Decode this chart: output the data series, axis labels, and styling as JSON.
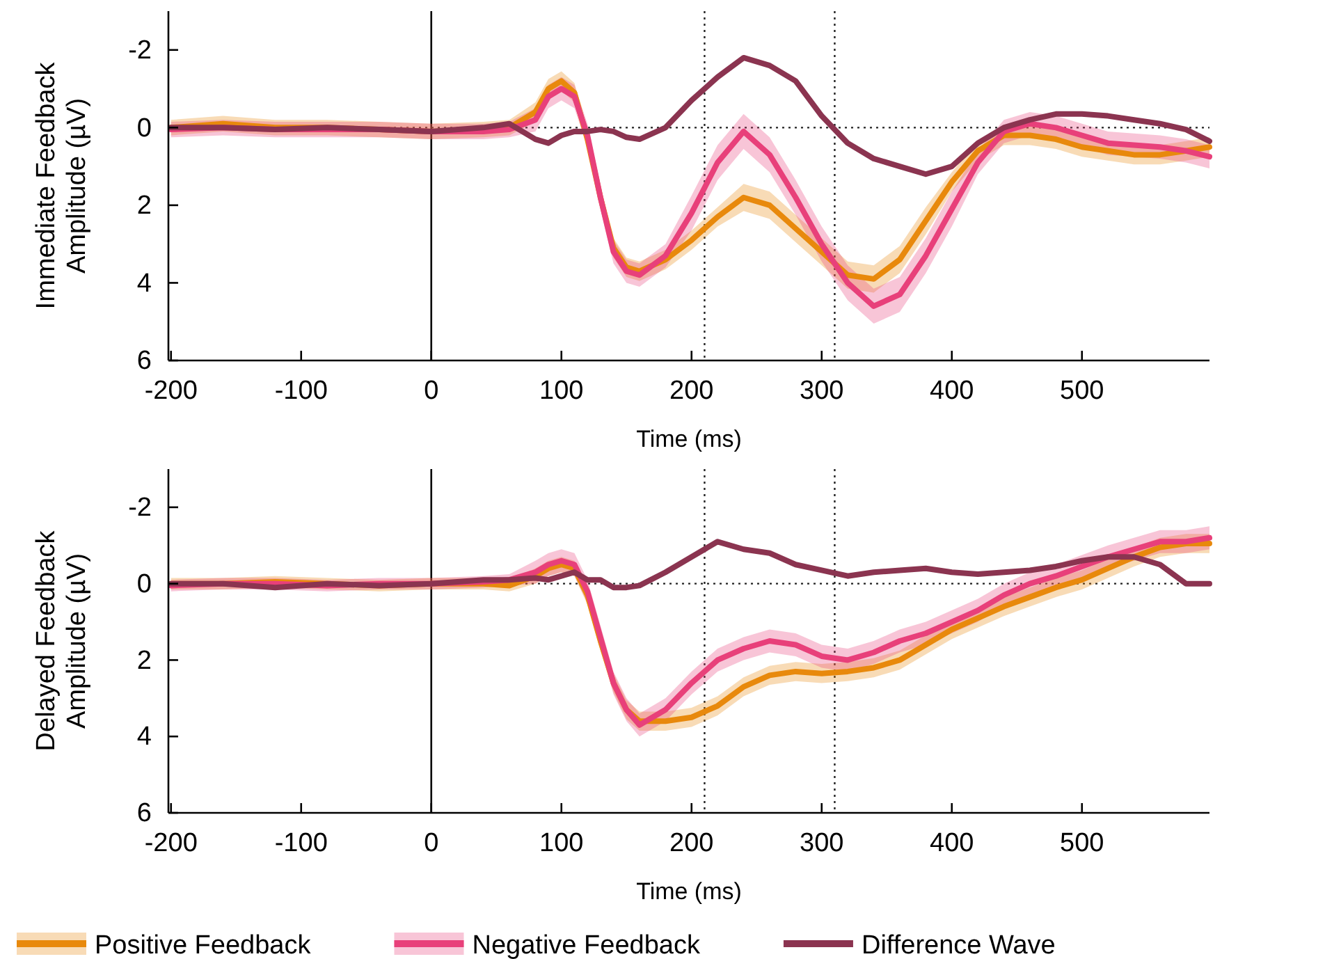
{
  "chart_data": [
    {
      "type": "line",
      "xlabel": "Time (ms)",
      "ylabel": "Immediate Feedback Amplitude (µV)",
      "x": [
        -200,
        -160,
        -120,
        -80,
        -40,
        0,
        40,
        60,
        80,
        90,
        100,
        110,
        120,
        130,
        140,
        150,
        160,
        180,
        200,
        220,
        240,
        260,
        280,
        300,
        320,
        340,
        360,
        380,
        400,
        420,
        440,
        460,
        480,
        500,
        520,
        540,
        560,
        580,
        598
      ],
      "xlim": [
        -202,
        598
      ],
      "xticks": [
        -200,
        -100,
        0,
        100,
        200,
        300,
        400,
        500
      ],
      "ylim": [
        6,
        -3
      ],
      "yticks": [
        -2,
        0,
        2,
        4,
        6
      ],
      "ref_lines": [
        {
          "axis": "x",
          "value": 0,
          "line_style": "solid"
        },
        {
          "axis": "x",
          "value": 210,
          "line_style": "dotted"
        },
        {
          "axis": "x",
          "value": 310,
          "line_style": "dotted"
        },
        {
          "axis": "y",
          "value": 0,
          "line_style": "dotted"
        }
      ],
      "legend": false,
      "line_style": "solid",
      "marker": "none",
      "series": [
        {
          "color": "#e8890c",
          "values": [
            0,
            -0.1,
            0,
            0,
            0.05,
            0.1,
            0.05,
            0,
            -0.4,
            -1.0,
            -1.2,
            -0.9,
            0.3,
            1.8,
            3.1,
            3.6,
            3.7,
            3.4,
            2.9,
            2.3,
            1.8,
            2.0,
            2.6,
            3.2,
            3.8,
            3.9,
            3.4,
            2.4,
            1.4,
            0.6,
            0.2,
            0.2,
            0.3,
            0.5,
            0.6,
            0.7,
            0.7,
            0.6,
            0.5
          ],
          "lower": [
            -0.2,
            -0.3,
            -0.2,
            -0.2,
            -0.15,
            -0.1,
            -0.15,
            -0.2,
            -0.65,
            -1.25,
            -1.45,
            -1.15,
            0.05,
            1.55,
            2.85,
            3.35,
            3.45,
            3.15,
            2.65,
            2.05,
            1.45,
            1.65,
            2.25,
            2.85,
            3.45,
            3.55,
            3.05,
            2.05,
            1.15,
            0.35,
            -0.05,
            -0.05,
            0.05,
            0.25,
            0.35,
            0.45,
            0.45,
            0.35,
            0.25
          ],
          "upper": [
            0.2,
            0.1,
            0.2,
            0.2,
            0.25,
            0.3,
            0.25,
            0.2,
            -0.15,
            -0.75,
            -0.95,
            -0.65,
            0.55,
            2.05,
            3.35,
            3.85,
            3.95,
            3.65,
            3.15,
            2.55,
            2.15,
            2.35,
            2.95,
            3.55,
            4.15,
            4.25,
            3.75,
            2.75,
            1.65,
            0.85,
            0.45,
            0.45,
            0.55,
            0.75,
            0.85,
            0.95,
            0.95,
            0.85,
            0.75
          ]
        },
        {
          "color": "#e8407a",
          "values": [
            0.05,
            0,
            0.05,
            0.05,
            0.05,
            0.1,
            0.1,
            0.05,
            -0.2,
            -0.8,
            -1.0,
            -0.8,
            0.2,
            1.8,
            3.2,
            3.7,
            3.8,
            3.3,
            2.2,
            0.9,
            0.1,
            0.7,
            1.8,
            3.0,
            4.0,
            4.6,
            4.3,
            3.3,
            2.1,
            0.9,
            0.1,
            -0.1,
            0,
            0.2,
            0.4,
            0.45,
            0.5,
            0.6,
            0.75
          ],
          "lower": [
            -0.15,
            -0.2,
            -0.15,
            -0.15,
            -0.15,
            -0.1,
            -0.1,
            -0.15,
            -0.5,
            -1.1,
            -1.3,
            -1.1,
            -0.1,
            1.5,
            2.9,
            3.4,
            3.5,
            3.0,
            1.75,
            0.45,
            -0.35,
            0.25,
            1.35,
            2.55,
            3.55,
            4.15,
            3.85,
            2.85,
            1.65,
            0.6,
            -0.2,
            -0.4,
            -0.3,
            -0.1,
            0.1,
            0.15,
            0.2,
            0.3,
            0.45
          ],
          "upper": [
            0.25,
            0.2,
            0.25,
            0.25,
            0.25,
            0.3,
            0.3,
            0.25,
            0.1,
            -0.5,
            -0.7,
            -0.5,
            0.5,
            2.1,
            3.5,
            4.0,
            4.1,
            3.6,
            2.65,
            1.35,
            0.55,
            1.15,
            2.25,
            3.45,
            4.45,
            5.05,
            4.75,
            3.75,
            2.55,
            1.2,
            0.4,
            0.2,
            0.3,
            0.5,
            0.7,
            0.75,
            0.8,
            0.9,
            1.05
          ]
        },
        {
          "color": "#8b3450",
          "values": [
            0,
            0,
            0.05,
            0,
            0.05,
            0.1,
            0,
            -0.1,
            0.3,
            0.4,
            0.2,
            0.1,
            0.1,
            0.05,
            0.1,
            0.25,
            0.3,
            0,
            -0.7,
            -1.3,
            -1.8,
            -1.6,
            -1.2,
            -0.3,
            0.4,
            0.8,
            1.0,
            1.2,
            1.0,
            0.4,
            0,
            -0.2,
            -0.35,
            -0.35,
            -0.3,
            -0.2,
            -0.1,
            0.05,
            0.35
          ]
        }
      ]
    },
    {
      "type": "line",
      "xlabel": "Time (ms)",
      "ylabel": "Delayed Feedback Amplitude (µV)",
      "x": [
        -200,
        -160,
        -120,
        -80,
        -40,
        0,
        40,
        60,
        80,
        90,
        100,
        110,
        120,
        130,
        140,
        150,
        160,
        180,
        200,
        220,
        240,
        260,
        280,
        300,
        320,
        340,
        360,
        380,
        400,
        420,
        440,
        460,
        480,
        500,
        520,
        540,
        560,
        580,
        598
      ],
      "xlim": [
        -202,
        598
      ],
      "xticks": [
        -200,
        -100,
        0,
        100,
        200,
        300,
        400,
        500
      ],
      "ylim": [
        6,
        -3
      ],
      "yticks": [
        -2,
        0,
        2,
        4,
        6
      ],
      "ref_lines": [
        {
          "axis": "x",
          "value": 0,
          "line_style": "solid"
        },
        {
          "axis": "x",
          "value": 210,
          "line_style": "dotted"
        },
        {
          "axis": "x",
          "value": 310,
          "line_style": "dotted"
        },
        {
          "axis": "y",
          "value": 0,
          "line_style": "dotted"
        }
      ],
      "legend": "bottom",
      "line_style": "solid",
      "marker": "none",
      "series": [
        {
          "name": "Positive Feedback",
          "color": "#e8890c",
          "values": [
            0,
            0,
            -0.05,
            0,
            0.05,
            0,
            0,
            0.05,
            -0.2,
            -0.4,
            -0.5,
            -0.4,
            0.3,
            1.5,
            2.6,
            3.3,
            3.6,
            3.6,
            3.5,
            3.2,
            2.7,
            2.4,
            2.3,
            2.35,
            2.3,
            2.2,
            2.0,
            1.6,
            1.2,
            0.9,
            0.6,
            0.35,
            0.1,
            -0.1,
            -0.4,
            -0.7,
            -0.95,
            -1.05,
            -1.05
          ],
          "lower": [
            -0.15,
            -0.15,
            -0.2,
            -0.15,
            -0.1,
            -0.15,
            -0.15,
            -0.1,
            -0.4,
            -0.6,
            -0.7,
            -0.6,
            0.05,
            1.25,
            2.35,
            3.05,
            3.35,
            3.35,
            3.25,
            2.95,
            2.45,
            2.15,
            2.05,
            2.1,
            2.05,
            1.95,
            1.75,
            1.35,
            0.95,
            0.65,
            0.35,
            0.1,
            -0.15,
            -0.35,
            -0.65,
            -0.95,
            -1.2,
            -1.3,
            -1.3
          ],
          "upper": [
            0.15,
            0.15,
            0.1,
            0.15,
            0.2,
            0.15,
            0.15,
            0.2,
            0,
            -0.2,
            -0.3,
            -0.2,
            0.55,
            1.75,
            2.85,
            3.55,
            3.85,
            3.85,
            3.75,
            3.45,
            2.95,
            2.65,
            2.55,
            2.6,
            2.55,
            2.45,
            2.25,
            1.85,
            1.45,
            1.15,
            0.85,
            0.6,
            0.35,
            0.15,
            -0.15,
            -0.45,
            -0.7,
            -0.8,
            -0.8
          ]
        },
        {
          "name": "Negative Feedback",
          "color": "#e8407a",
          "values": [
            0.05,
            0,
            0,
            0.05,
            0,
            0,
            -0.05,
            -0.1,
            -0.3,
            -0.5,
            -0.6,
            -0.5,
            0.2,
            1.4,
            2.6,
            3.3,
            3.7,
            3.3,
            2.6,
            2.0,
            1.7,
            1.5,
            1.6,
            1.9,
            2.0,
            1.8,
            1.5,
            1.3,
            1.0,
            0.7,
            0.3,
            0,
            -0.2,
            -0.45,
            -0.7,
            -0.9,
            -1.1,
            -1.1,
            -1.2
          ],
          "lower": [
            -0.1,
            -0.15,
            -0.15,
            -0.1,
            -0.15,
            -0.15,
            -0.2,
            -0.25,
            -0.6,
            -0.8,
            -0.9,
            -0.8,
            -0.1,
            1.1,
            2.3,
            3.0,
            3.4,
            3.0,
            2.3,
            1.7,
            1.4,
            1.2,
            1.3,
            1.6,
            1.7,
            1.5,
            1.2,
            1.0,
            0.7,
            0.4,
            0,
            -0.3,
            -0.5,
            -0.75,
            -1.0,
            -1.2,
            -1.4,
            -1.4,
            -1.5
          ],
          "upper": [
            0.2,
            0.15,
            0.15,
            0.2,
            0.15,
            0.15,
            0.1,
            0.05,
            0,
            -0.2,
            -0.3,
            -0.2,
            0.5,
            1.7,
            2.9,
            3.6,
            4.0,
            3.6,
            2.9,
            2.3,
            2.0,
            1.8,
            1.9,
            2.2,
            2.3,
            2.1,
            1.8,
            1.6,
            1.3,
            1.0,
            0.6,
            0.3,
            0.1,
            -0.15,
            -0.4,
            -0.6,
            -0.8,
            -0.8,
            -0.9
          ]
        },
        {
          "name": "Difference Wave",
          "color": "#8b3450",
          "values": [
            0,
            0,
            0.1,
            0,
            0.05,
            0,
            -0.1,
            -0.1,
            -0.15,
            -0.1,
            -0.2,
            -0.3,
            -0.1,
            -0.1,
            0.1,
            0.1,
            0.05,
            -0.3,
            -0.7,
            -1.1,
            -0.9,
            -0.8,
            -0.5,
            -0.35,
            -0.2,
            -0.3,
            -0.35,
            -0.4,
            -0.3,
            -0.25,
            -0.3,
            -0.35,
            -0.45,
            -0.6,
            -0.7,
            -0.7,
            -0.5,
            0,
            0
          ]
        }
      ]
    }
  ]
}
